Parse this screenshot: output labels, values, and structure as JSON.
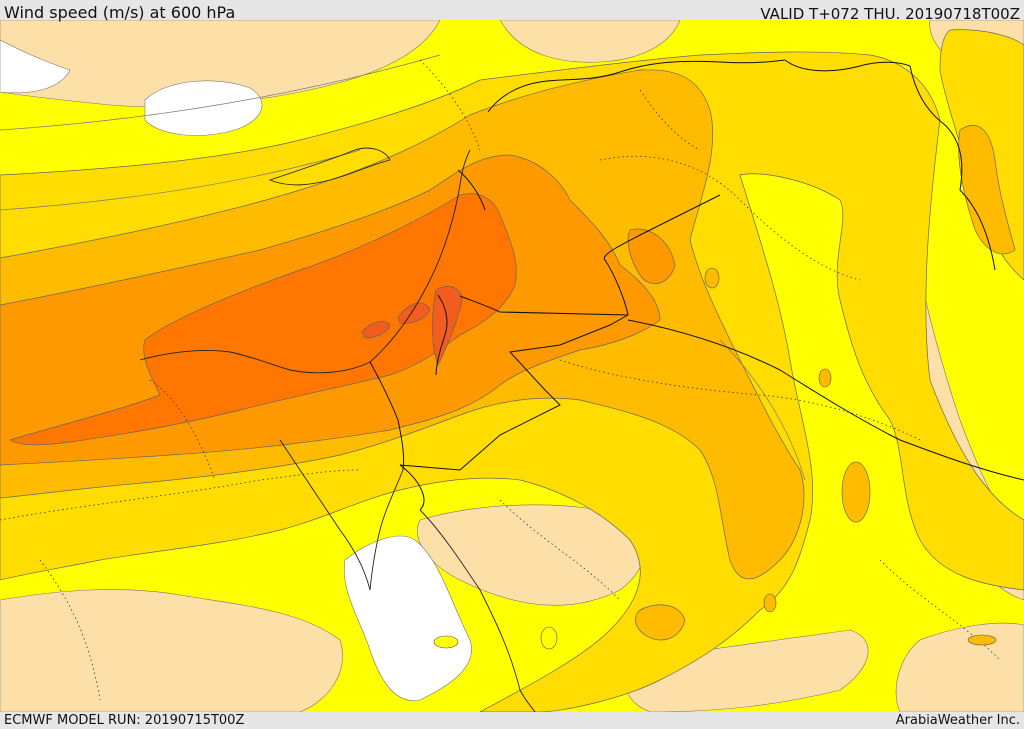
{
  "header": {
    "title": "Wind speed (m/s) at 600 hPa",
    "valid": "VALID T+072 THU. 20190718T00Z"
  },
  "footer": {
    "model_run": "ECMWF MODEL RUN: 20190715T00Z",
    "provider": "ArabiaWeather Inc."
  },
  "colors": {
    "band_lowest": "#ffffff",
    "band_low": "#fde0a8",
    "band_1": "#ffff00",
    "band_2": "#ffdd00",
    "band_3": "#ffbb00",
    "band_4": "#ff9900",
    "band_5": "#ff7700",
    "band_6": "#f25c1e"
  }
}
